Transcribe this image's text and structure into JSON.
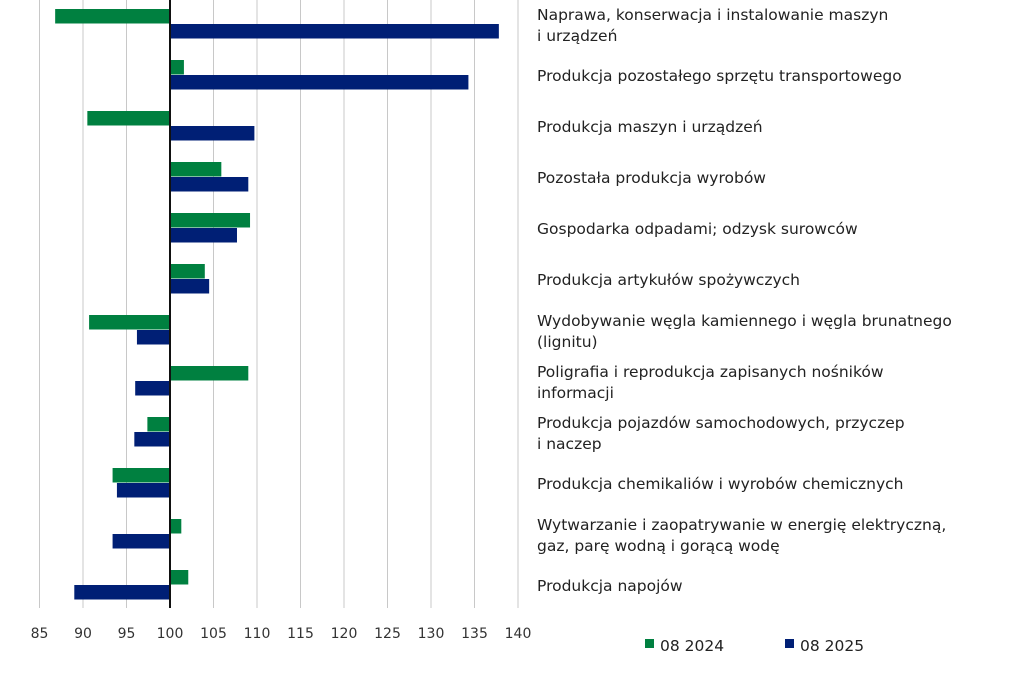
{
  "chart_data": {
    "type": "bar",
    "orientation": "horizontal",
    "title": "",
    "xlabel": "",
    "ylabel": "",
    "xlim": [
      85,
      140
    ],
    "baseline": 100,
    "xticks": [
      85,
      90,
      95,
      100,
      105,
      110,
      115,
      120,
      125,
      130,
      135,
      140
    ],
    "grid": true,
    "legend_position": "bottom-right",
    "categories": [
      [
        "Naprawa, konserwacja i instalowanie maszyn",
        "i urządzeń"
      ],
      [
        "Produkcja pozostałego sprzętu transportowego"
      ],
      [
        "Produkcja maszyn i urządzeń"
      ],
      [
        "Pozostała produkcja wyrobów"
      ],
      [
        "Gospodarka odpadami; odzysk surowców"
      ],
      [
        "Produkcja artykułów spożywczych"
      ],
      [
        "Wydobywanie węgla kamiennego i węgla brunatnego",
        "(lignitu)"
      ],
      [
        "Poligrafia i reprodukcja zapisanych nośników",
        "informacji"
      ],
      [
        "Produkcja pojazdów samochodowych, przyczep",
        "i naczep"
      ],
      [
        "Produkcja chemikaliów i wyrobów chemicznych"
      ],
      [
        "Wytwarzanie i zaopatrywanie w energię elektryczną,",
        "gaz, parę wodną i gorącą wodę"
      ],
      [
        "Produkcja napojów"
      ]
    ],
    "series": [
      {
        "name": "08 2024",
        "color": "#008040",
        "values": [
          86.8,
          101.6,
          90.5,
          105.9,
          109.2,
          104.0,
          90.7,
          109.0,
          97.4,
          93.4,
          101.3,
          102.1
        ]
      },
      {
        "name": "08 2025",
        "color": "#001f75",
        "values": [
          137.8,
          134.3,
          109.7,
          109.0,
          107.7,
          104.5,
          96.2,
          96.0,
          95.9,
          93.9,
          93.4,
          89.0
        ]
      }
    ]
  }
}
